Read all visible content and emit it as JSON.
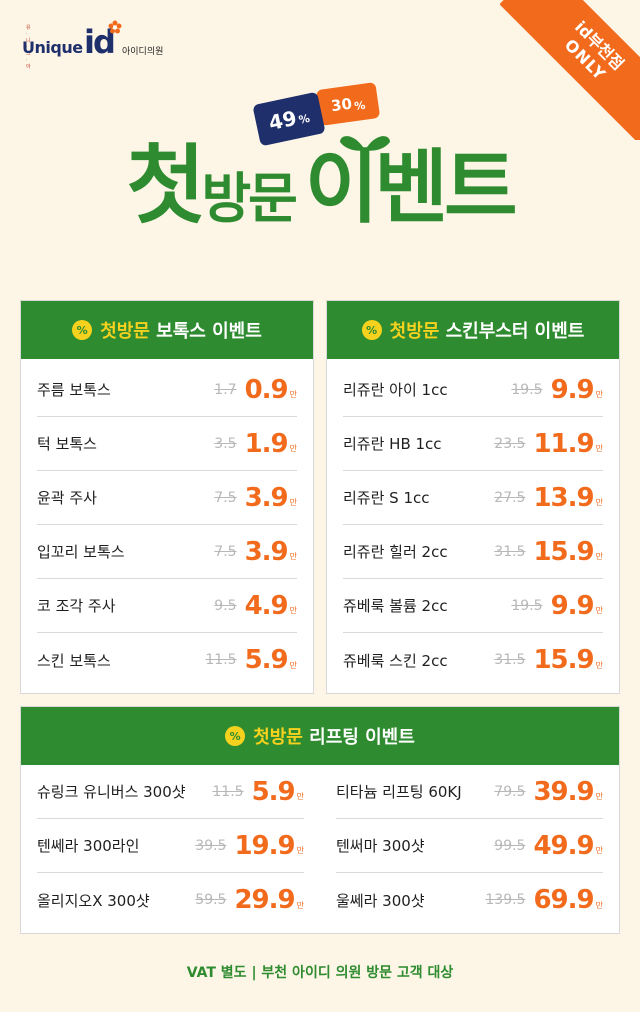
{
  "logo": {
    "tiny": "유·니·크·아",
    "uni": "Unique",
    "id": "id",
    "clinic": "아이디의원"
  },
  "ribbon": {
    "line1": "id부천점",
    "line2": "ONLY"
  },
  "tickets": {
    "blue": "49",
    "orange": "30",
    "pct": "%"
  },
  "headline": {
    "part1": "첫",
    "part2": "방문",
    "part3": "이벤트"
  },
  "colors": {
    "green": "#2e8b2f",
    "orange": "#f26b1d",
    "navy": "#1e2f6b",
    "yellow": "#f6d21e",
    "bg": "#fdf6e6"
  },
  "botox": {
    "title_hl": "첫방문",
    "title_rest": "보톡스 이벤트",
    "icon": "%",
    "items": [
      {
        "name": "주름 보톡스",
        "old": "1.7",
        "new": "0.9",
        "unit": "만"
      },
      {
        "name": "턱 보톡스",
        "old": "3.5",
        "new": "1.9",
        "unit": "만"
      },
      {
        "name": "윤곽 주사",
        "old": "7.5",
        "new": "3.9",
        "unit": "만"
      },
      {
        "name": "입꼬리 보톡스",
        "old": "7.5",
        "new": "3.9",
        "unit": "만"
      },
      {
        "name": "코 조각 주사",
        "old": "9.5",
        "new": "4.9",
        "unit": "만"
      },
      {
        "name": "스킨 보톡스",
        "old": "11.5",
        "new": "5.9",
        "unit": "만"
      }
    ]
  },
  "skin": {
    "title_hl": "첫방문",
    "title_rest": "스킨부스터 이벤트",
    "icon": "%",
    "items": [
      {
        "name": "리쥬란 아이 1cc",
        "old": "19.5",
        "new": "9.9",
        "unit": "만"
      },
      {
        "name": "리쥬란 HB 1cc",
        "old": "23.5",
        "new": "11.9",
        "unit": "만"
      },
      {
        "name": "리쥬란 S 1cc",
        "old": "27.5",
        "new": "13.9",
        "unit": "만"
      },
      {
        "name": "리쥬란 힐러 2cc",
        "old": "31.5",
        "new": "15.9",
        "unit": "만"
      },
      {
        "name": "쥬베룩 볼륨 2cc",
        "old": "19.5",
        "new": "9.9",
        "unit": "만"
      },
      {
        "name": "쥬베룩 스킨 2cc",
        "old": "31.5",
        "new": "15.9",
        "unit": "만"
      }
    ]
  },
  "lifting": {
    "title_hl": "첫방문",
    "title_rest": "리프팅 이벤트",
    "icon": "%",
    "left": [
      {
        "name": "슈링크 유니버스 300샷",
        "old": "11.5",
        "new": "5.9",
        "unit": "만"
      },
      {
        "name": "텐쎄라 300라인",
        "old": "39.5",
        "new": "19.9",
        "unit": "만"
      },
      {
        "name": "올리지오X 300샷",
        "old": "59.5",
        "new": "29.9",
        "unit": "만"
      }
    ],
    "right": [
      {
        "name": "티타늄 리프팅 60KJ",
        "old": "79.5",
        "new": "39.9",
        "unit": "만"
      },
      {
        "name": "텐써마 300샷",
        "old": "99.5",
        "new": "49.9",
        "unit": "만"
      },
      {
        "name": "울쎄라 300샷",
        "old": "139.5",
        "new": "69.9",
        "unit": "만"
      }
    ]
  },
  "footer": "VAT 별도 | 부천 아이디 의원 방문 고객 대상"
}
